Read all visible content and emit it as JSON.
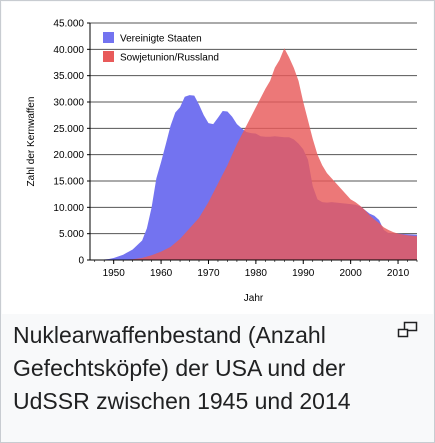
{
  "caption": "Nuklearwaffenbestand (Anzahl Gefechtsköpfe) der USA und der UdSSR zwischen 1945 und 2014",
  "enlarge_icon": "magnify-clip-icon",
  "chart_data": {
    "type": "area",
    "xlabel": "Jahr",
    "ylabel": "Zahl der Kernwaffen",
    "xlim": [
      1945,
      2014
    ],
    "ylim": [
      0,
      45000
    ],
    "xticks": [
      1950,
      1960,
      1970,
      1980,
      1990,
      2000,
      2010
    ],
    "yticks": [
      0,
      5000,
      10000,
      15000,
      20000,
      25000,
      30000,
      35000,
      40000,
      45000
    ],
    "ytick_labels": [
      "0",
      "5.000",
      "10.000",
      "15.000",
      "20.000",
      "25.000",
      "30.000",
      "35.000",
      "40.000",
      "45.000"
    ],
    "grid": true,
    "legend": "top-left",
    "series": [
      {
        "name": "Vereinigte Staaten",
        "color": "#7373f0",
        "points": [
          [
            1945,
            0
          ],
          [
            1947,
            30
          ],
          [
            1949,
            200
          ],
          [
            1950,
            370
          ],
          [
            1952,
            1000
          ],
          [
            1954,
            2000
          ],
          [
            1956,
            3700
          ],
          [
            1957,
            6000
          ],
          [
            1958,
            10000
          ],
          [
            1959,
            15500
          ],
          [
            1960,
            18600
          ],
          [
            1961,
            22000
          ],
          [
            1962,
            25500
          ],
          [
            1963,
            28000
          ],
          [
            1964,
            29000
          ],
          [
            1965,
            31000
          ],
          [
            1966,
            31300
          ],
          [
            1967,
            31200
          ],
          [
            1968,
            29500
          ],
          [
            1969,
            27500
          ],
          [
            1970,
            26000
          ],
          [
            1971,
            25800
          ],
          [
            1972,
            27000
          ],
          [
            1973,
            28300
          ],
          [
            1974,
            28200
          ],
          [
            1975,
            27200
          ],
          [
            1976,
            25800
          ],
          [
            1977,
            25000
          ],
          [
            1978,
            24300
          ],
          [
            1979,
            24100
          ],
          [
            1980,
            24000
          ],
          [
            1981,
            23500
          ],
          [
            1982,
            23400
          ],
          [
            1983,
            23400
          ],
          [
            1984,
            23500
          ],
          [
            1985,
            23400
          ],
          [
            1986,
            23300
          ],
          [
            1987,
            23300
          ],
          [
            1988,
            22900
          ],
          [
            1989,
            22100
          ],
          [
            1990,
            21000
          ],
          [
            1991,
            19000
          ],
          [
            1992,
            14000
          ],
          [
            1993,
            11500
          ],
          [
            1994,
            11000
          ],
          [
            1995,
            10900
          ],
          [
            1996,
            11000
          ],
          [
            1997,
            10900
          ],
          [
            1998,
            10800
          ],
          [
            1999,
            10700
          ],
          [
            2000,
            10600
          ],
          [
            2001,
            10500
          ],
          [
            2002,
            10200
          ],
          [
            2003,
            9500
          ],
          [
            2004,
            8800
          ],
          [
            2005,
            8400
          ],
          [
            2006,
            7600
          ],
          [
            2007,
            5700
          ],
          [
            2008,
            5100
          ],
          [
            2009,
            5000
          ],
          [
            2010,
            5000
          ],
          [
            2012,
            4900
          ],
          [
            2014,
            4800
          ]
        ]
      },
      {
        "name": "Sowjetunion/Russland",
        "color": "#e85a5a",
        "points": [
          [
            1945,
            0
          ],
          [
            1950,
            0
          ],
          [
            1952,
            50
          ],
          [
            1954,
            150
          ],
          [
            1956,
            400
          ],
          [
            1958,
            900
          ],
          [
            1960,
            1600
          ],
          [
            1962,
            2500
          ],
          [
            1964,
            4000
          ],
          [
            1966,
            6000
          ],
          [
            1968,
            8000
          ],
          [
            1970,
            11000
          ],
          [
            1972,
            14500
          ],
          [
            1974,
            18000
          ],
          [
            1976,
            22000
          ],
          [
            1978,
            25500
          ],
          [
            1980,
            29000
          ],
          [
            1982,
            32500
          ],
          [
            1983,
            34000
          ],
          [
            1984,
            36500
          ],
          [
            1985,
            38000
          ],
          [
            1986,
            40200
          ],
          [
            1987,
            38500
          ],
          [
            1988,
            36500
          ],
          [
            1989,
            34000
          ],
          [
            1990,
            30000
          ],
          [
            1991,
            26500
          ],
          [
            1992,
            23000
          ],
          [
            1993,
            20000
          ],
          [
            1994,
            18000
          ],
          [
            1995,
            16500
          ],
          [
            1996,
            15500
          ],
          [
            1997,
            14500
          ],
          [
            1998,
            13500
          ],
          [
            1999,
            12500
          ],
          [
            2000,
            11500
          ],
          [
            2001,
            11000
          ],
          [
            2002,
            10300
          ],
          [
            2003,
            9500
          ],
          [
            2004,
            8500
          ],
          [
            2005,
            7700
          ],
          [
            2006,
            7000
          ],
          [
            2007,
            6200
          ],
          [
            2008,
            5700
          ],
          [
            2009,
            5300
          ],
          [
            2010,
            5000
          ],
          [
            2012,
            4700
          ],
          [
            2014,
            4500
          ]
        ]
      }
    ]
  }
}
